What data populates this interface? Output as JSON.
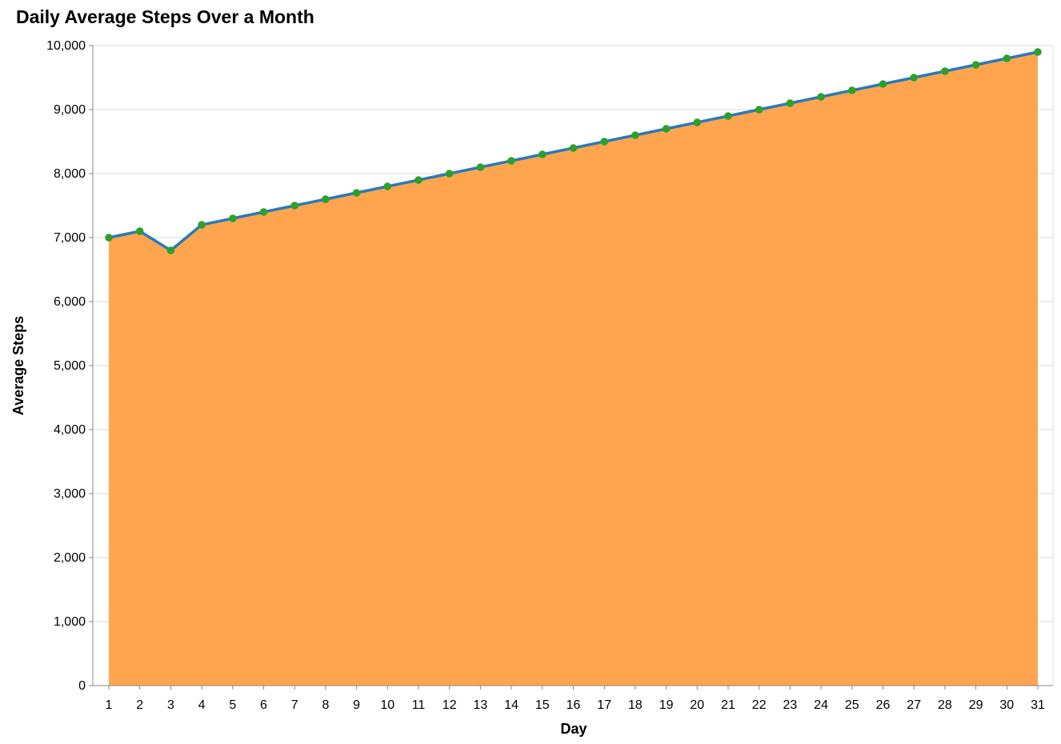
{
  "chart_data": {
    "type": "area",
    "title": "Daily Average Steps Over a Month",
    "xlabel": "Day",
    "ylabel": "Average Steps",
    "x": [
      1,
      2,
      3,
      4,
      5,
      6,
      7,
      8,
      9,
      10,
      11,
      12,
      13,
      14,
      15,
      16,
      17,
      18,
      19,
      20,
      21,
      22,
      23,
      24,
      25,
      26,
      27,
      28,
      29,
      30,
      31
    ],
    "values": [
      7000,
      7100,
      6800,
      7200,
      7300,
      7400,
      7500,
      7600,
      7700,
      7800,
      7900,
      8000,
      8100,
      8200,
      8300,
      8400,
      8500,
      8600,
      8700,
      8800,
      8900,
      9000,
      9100,
      9200,
      9300,
      9400,
      9500,
      9600,
      9700,
      9800,
      9900
    ],
    "xlim": [
      1,
      31
    ],
    "ylim": [
      0,
      10000
    ],
    "yticks": [
      0,
      1000,
      2000,
      3000,
      4000,
      5000,
      6000,
      7000,
      8000,
      9000,
      10000
    ],
    "ytick_labels": [
      "0",
      "1,000",
      "2,000",
      "3,000",
      "4,000",
      "5,000",
      "6,000",
      "7,000",
      "8,000",
      "9,000",
      "10,000"
    ],
    "grid": true,
    "colors": {
      "area": "#ffa54f",
      "line": "#2a7ab8",
      "point": "#2ca02c"
    }
  }
}
